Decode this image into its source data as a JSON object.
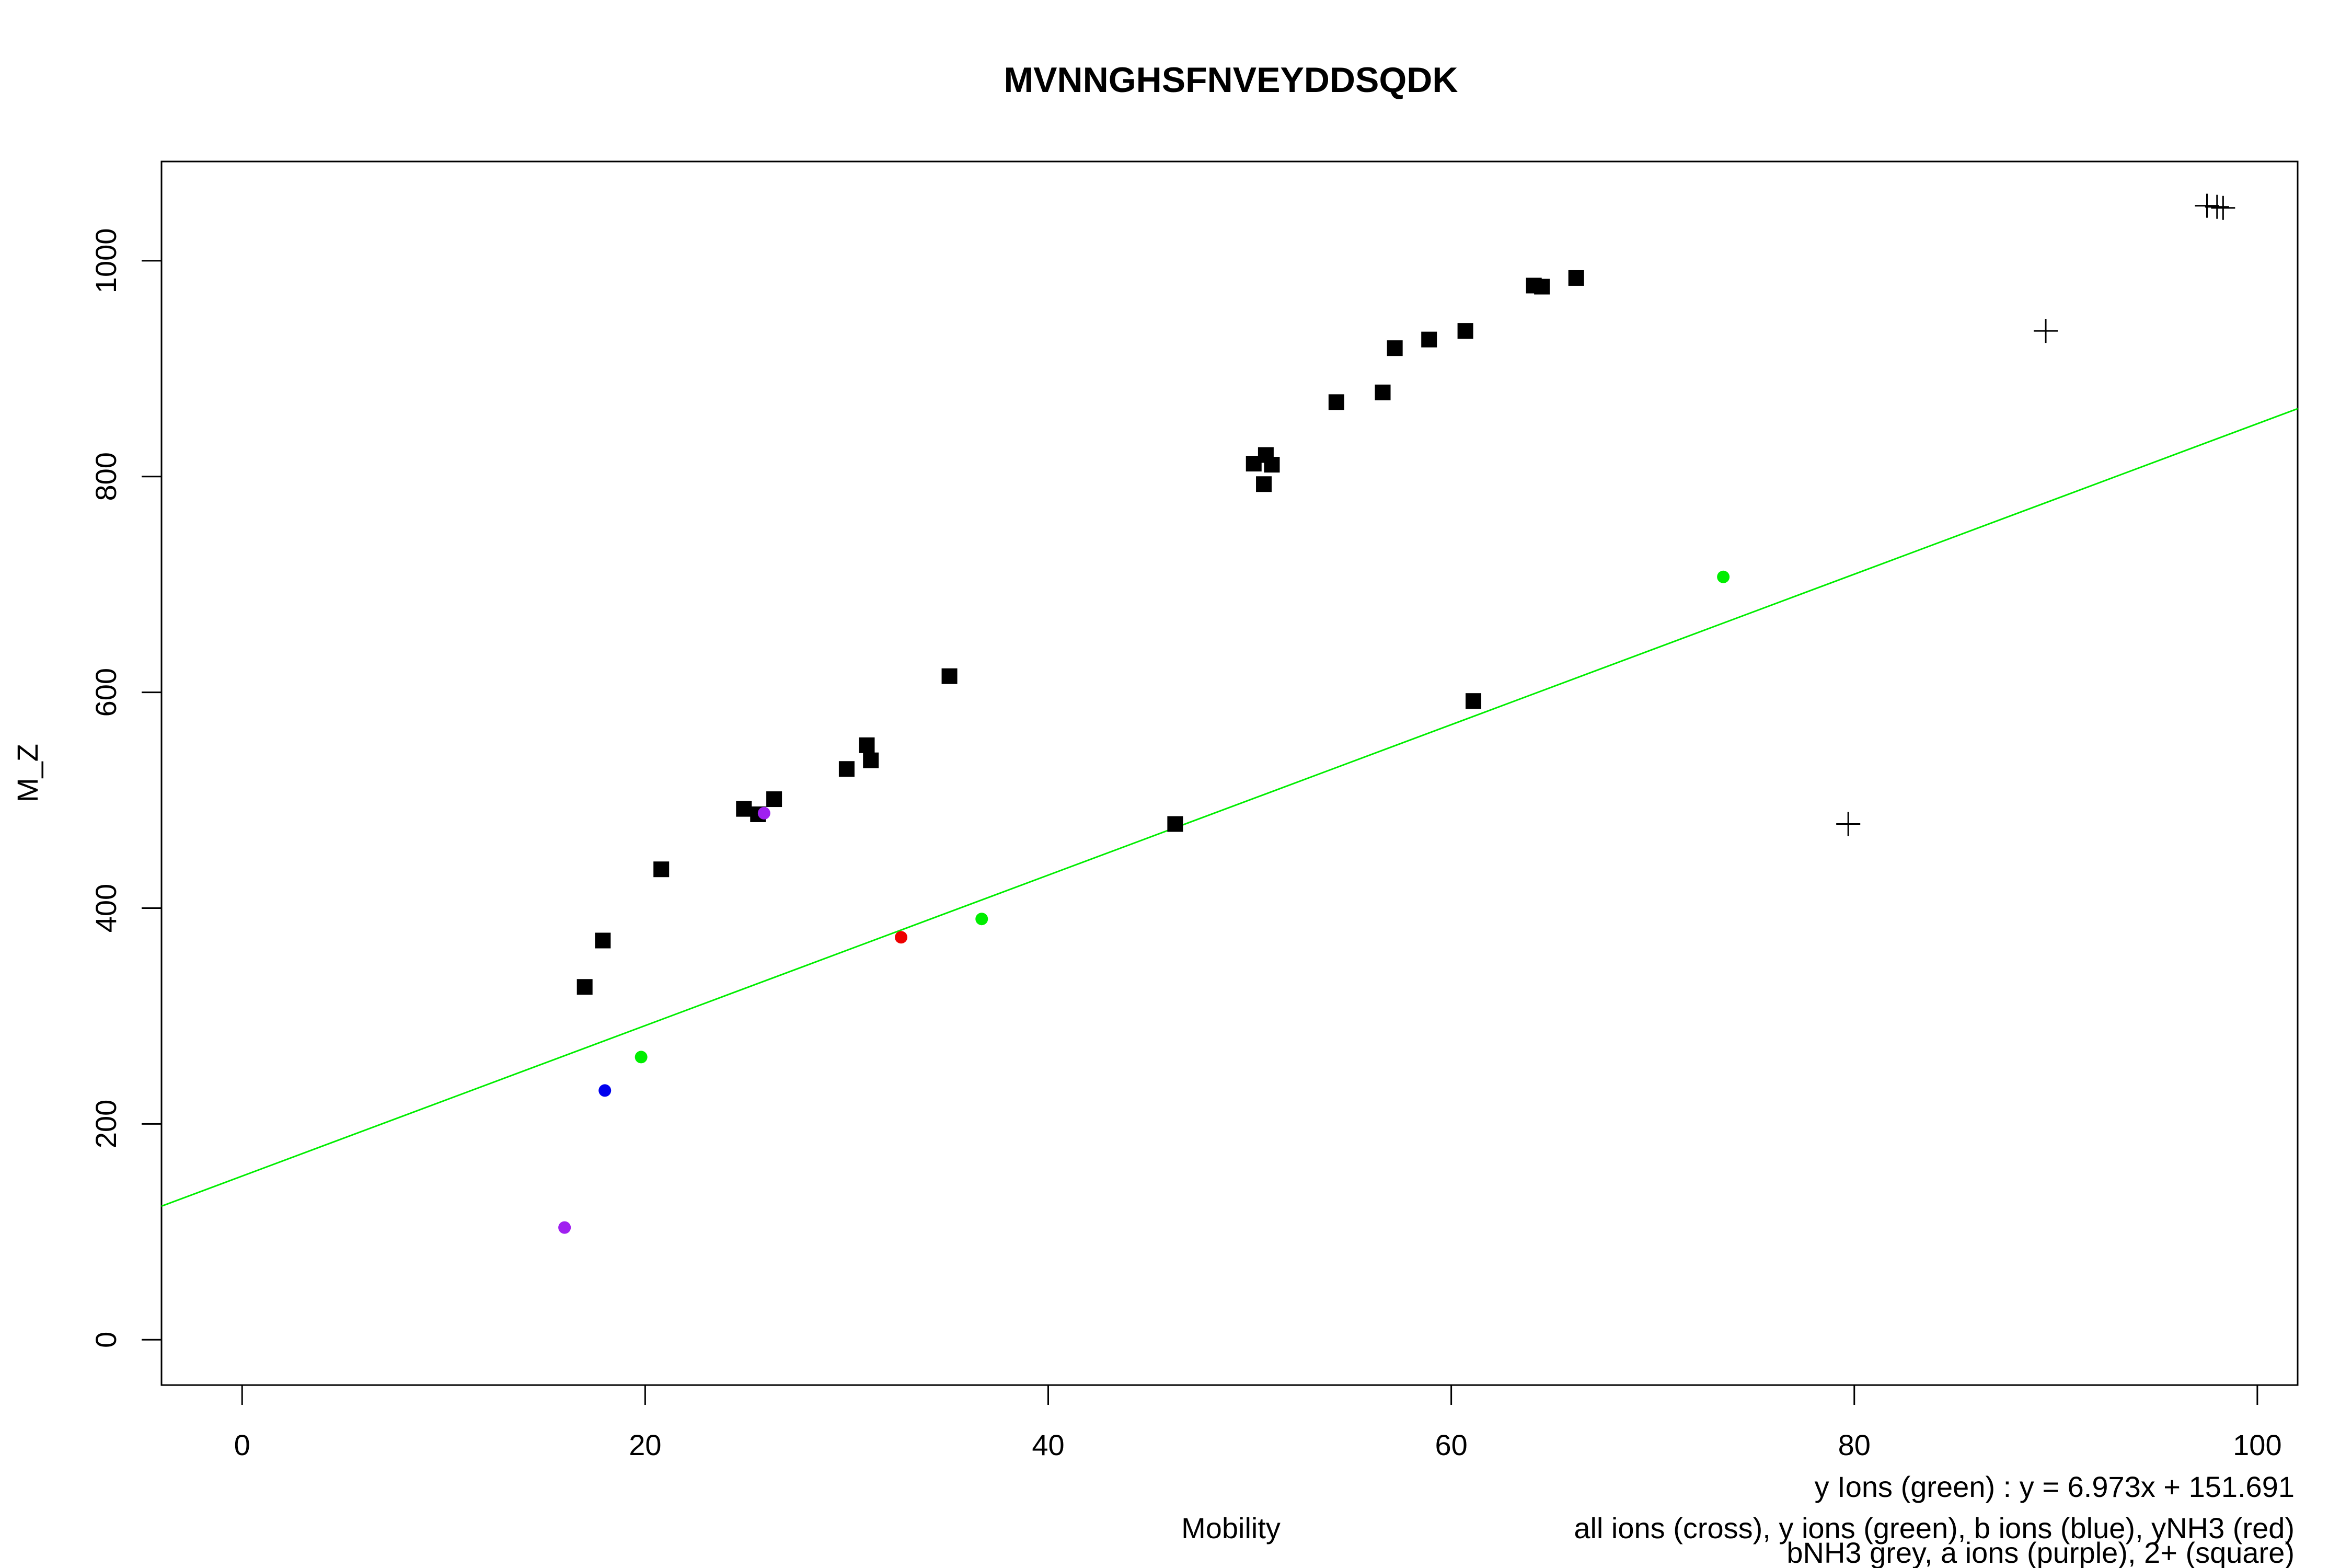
{
  "chart_data": {
    "type": "scatter",
    "title": "MVNNGHSFNVEYDDSQDK",
    "xlabel": "Mobility",
    "ylabel": "M_Z",
    "xlim": [
      -4,
      102
    ],
    "ylim": [
      -42,
      1092
    ],
    "x_ticks": [
      0,
      20,
      40,
      60,
      80,
      100
    ],
    "y_ticks": [
      0,
      200,
      400,
      600,
      800,
      1000
    ],
    "x_tick_labels": [
      "0",
      "20",
      "40",
      "60",
      "80",
      "100"
    ],
    "y_tick_labels": [
      "0",
      "200",
      "400",
      "600",
      "800",
      "1000"
    ],
    "grid": false,
    "colors": {
      "all_ions": "#000000",
      "y_ions": "#00ee00",
      "b_ions": "#0000ee",
      "yNH3": "#ee0000",
      "a_ions": "#a020f0",
      "charge2": "#000000",
      "fit_line": "#00ee00"
    },
    "series": [
      {
        "key": "all",
        "marker": "cross",
        "color": "#000000",
        "points": [
          [
            79.7,
            478
          ],
          [
            89.5,
            935
          ],
          [
            97.5,
            1051
          ],
          [
            98.0,
            1050
          ],
          [
            98.3,
            1049
          ]
        ]
      },
      {
        "key": "y",
        "marker": "dot",
        "color": "#00ee00",
        "points": [
          [
            19.8,
            262
          ],
          [
            36.7,
            390
          ],
          [
            73.5,
            707
          ]
        ]
      },
      {
        "key": "b",
        "marker": "dot",
        "color": "#0000ee",
        "points": [
          [
            18.0,
            231
          ]
        ]
      },
      {
        "key": "yNH3",
        "marker": "dot",
        "color": "#ee0000",
        "points": [
          [
            32.7,
            373
          ]
        ]
      },
      {
        "key": "a",
        "marker": "dot",
        "color": "#a020f0",
        "points": [
          [
            16.0,
            104
          ],
          [
            25.9,
            488
          ]
        ]
      },
      {
        "key": "charge2",
        "marker": "square",
        "color": "#000000",
        "points": [
          [
            17.0,
            327
          ],
          [
            17.9,
            370
          ],
          [
            20.8,
            436
          ],
          [
            24.9,
            492
          ],
          [
            25.6,
            487
          ],
          [
            26.4,
            501
          ],
          [
            30.0,
            529
          ],
          [
            31.0,
            551
          ],
          [
            31.2,
            537
          ],
          [
            35.1,
            615
          ],
          [
            46.3,
            478
          ],
          [
            50.2,
            812
          ],
          [
            50.7,
            793
          ],
          [
            50.8,
            820
          ],
          [
            51.1,
            811
          ],
          [
            54.3,
            869
          ],
          [
            56.6,
            878
          ],
          [
            57.2,
            919
          ],
          [
            58.9,
            927
          ],
          [
            60.7,
            935
          ],
          [
            61.1,
            592
          ],
          [
            64.1,
            977
          ],
          [
            64.5,
            976
          ],
          [
            66.2,
            984
          ]
        ]
      }
    ],
    "fit_line": {
      "slope": 6.973,
      "intercept": 151.691,
      "color": "#00ee00",
      "label": "y Ions (green) : y = 6.973x + 151.691"
    },
    "annotations": [
      "all ions (cross), y ions (green), b ions (blue), yNH3 (red)",
      "bNH3 grey, a ions (purple), 2+ (square)"
    ]
  }
}
